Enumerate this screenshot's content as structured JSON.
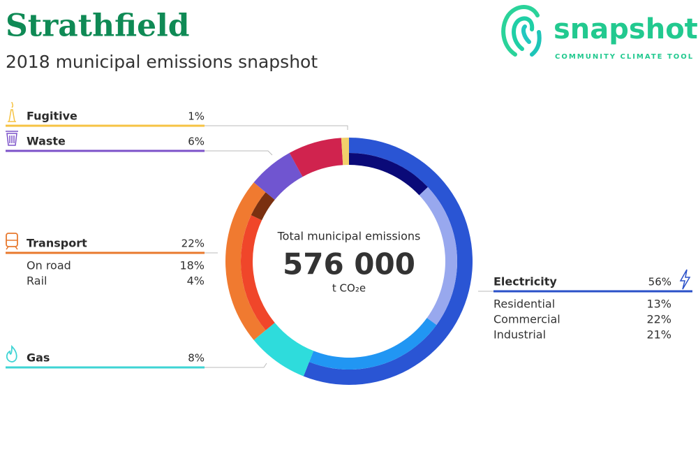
{
  "header": {
    "title": "Strathfield",
    "subtitle": "2018 municipal emissions snapshot"
  },
  "logo": {
    "name": "snapshot",
    "tagline": "COMMUNITY CLIMATE TOOL"
  },
  "chart_data": {
    "type": "donut",
    "center_label": "Total municipal emissions",
    "total": {
      "value": 576000,
      "label": "576 000"
    },
    "unit": "t CO₂e",
    "sectors": [
      {
        "name": "Electricity",
        "value": 56,
        "label": "56%",
        "color": "#2a55d4",
        "line_color": "#2a50c8",
        "subsectors": [
          {
            "name": "Residential",
            "value": 13,
            "label": "13%",
            "color": "#0a0a78"
          },
          {
            "name": "Commercial",
            "value": 22,
            "label": "22%",
            "color": "#98a8ee"
          },
          {
            "name": "Industrial",
            "value": 21,
            "label": "21%",
            "color": "#2196f3"
          }
        ]
      },
      {
        "name": "Gas",
        "value": 8,
        "label": "8%",
        "color": "#2edcdc",
        "line_color": "#3fd4d4"
      },
      {
        "name": "Transport",
        "value": 22,
        "label": "22%",
        "color": "#f07a30",
        "line_color": "#e8792e",
        "subsectors": [
          {
            "name": "On road",
            "value": 18,
            "label": "18%",
            "color": "#f0462a"
          },
          {
            "name": "Rail",
            "value": 4,
            "label": "4%",
            "color": "#7a3010"
          }
        ]
      },
      {
        "name": "Waste",
        "value": 6,
        "label": "6%",
        "color": "#7055d0",
        "line_color": "#7c52c9"
      },
      {
        "name": null,
        "value": 7,
        "color": "#d0234e"
      },
      {
        "name": "Fugitive",
        "value": 1,
        "label": "1%",
        "color": "#f2d06b",
        "line_color": "#f6c343"
      }
    ]
  }
}
